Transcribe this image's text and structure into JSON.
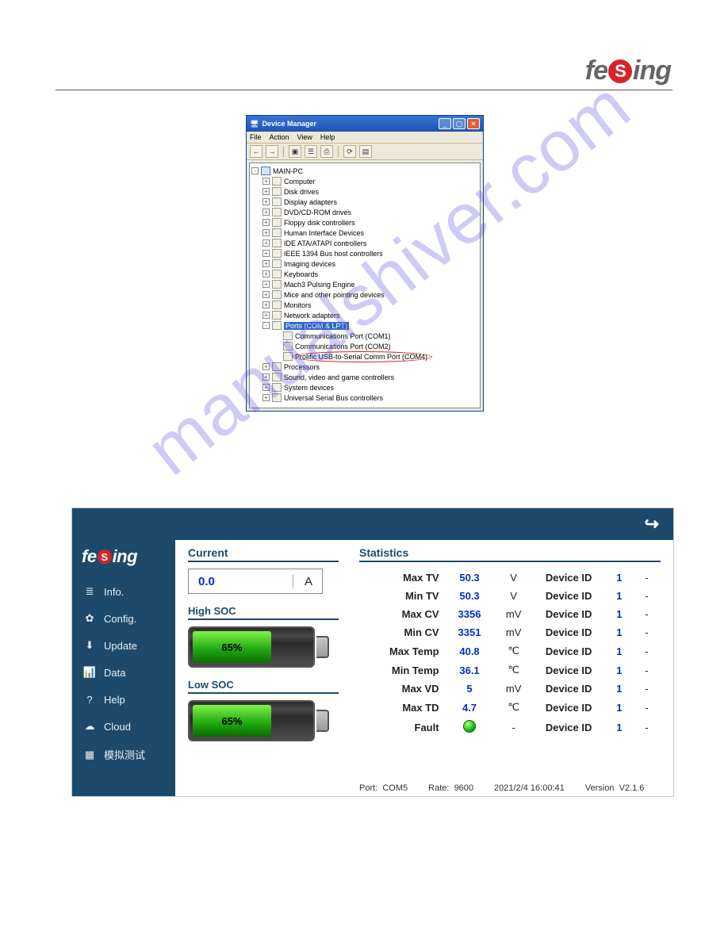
{
  "page_logo_text": "feSing",
  "watermark_text": "manualshiver.com",
  "device_manager": {
    "title": "Device Manager",
    "menu": [
      "File",
      "Action",
      "View",
      "Help"
    ],
    "root": "MAIN-PC",
    "nodes": [
      "Computer",
      "Disk drives",
      "Display adapters",
      "DVD/CD-ROM drives",
      "Floppy disk controllers",
      "Human Interface Devices",
      "IDE ATA/ATAPI controllers",
      "IEEE 1394 Bus host controllers",
      "Imaging devices",
      "Keyboards",
      "Mach3 Pulsing Engine",
      "Mice and other pointing devices",
      "Monitors",
      "Network adapters"
    ],
    "ports_label": "Ports (COM & LPT)",
    "ports_children": [
      "Communications Port (COM1)",
      "Communications Port (COM2)",
      "Prolific USB-to-Serial Comm Port (COM4)"
    ],
    "nodes_after": [
      "Processors",
      "Sound, video and game controllers",
      "System devices",
      "Universal Serial Bus controllers"
    ]
  },
  "bms": {
    "sidebar": [
      {
        "icon": "≣",
        "label": "Info."
      },
      {
        "icon": "✿",
        "label": "Config."
      },
      {
        "icon": "⬇",
        "label": "Update"
      },
      {
        "icon": "📊",
        "label": "Data"
      },
      {
        "icon": "?",
        "label": "Help"
      },
      {
        "icon": "☁",
        "label": "Cloud"
      },
      {
        "icon": "▦",
        "label": "模拟测试"
      }
    ],
    "current_title": "Current",
    "current_value": "0.0",
    "current_unit": "A",
    "high_soc_title": "High SOC",
    "high_soc_value": "65%",
    "high_soc_pct": 65,
    "low_soc_title": "Low SOC",
    "low_soc_value": "65%",
    "low_soc_pct": 65,
    "stats_title": "Statistics",
    "device_id_label": "Device ID",
    "stats": [
      {
        "label": "Max TV",
        "value": "50.3",
        "unit": "V",
        "id": "1"
      },
      {
        "label": "Min TV",
        "value": "50.3",
        "unit": "V",
        "id": "1"
      },
      {
        "label": "Max CV",
        "value": "3356",
        "unit": "mV",
        "id": "1"
      },
      {
        "label": "Min CV",
        "value": "3351",
        "unit": "mV",
        "id": "1"
      },
      {
        "label": "Max Temp",
        "value": "40.8",
        "unit": "℃",
        "id": "1"
      },
      {
        "label": "Min Temp",
        "value": "36.1",
        "unit": "℃",
        "id": "1"
      },
      {
        "label": "Max VD",
        "value": "5",
        "unit": "mV",
        "id": "1"
      },
      {
        "label": "Max TD",
        "value": "4.7",
        "unit": "℃",
        "id": "1"
      }
    ],
    "fault_label": "Fault",
    "status": {
      "port_label": "Port:",
      "port": "COM5",
      "rate_label": "Rate:",
      "rate": "9600",
      "time": "2021/2/4 16:00:41",
      "ver_label": "Version",
      "ver": "V2.1.6"
    }
  }
}
